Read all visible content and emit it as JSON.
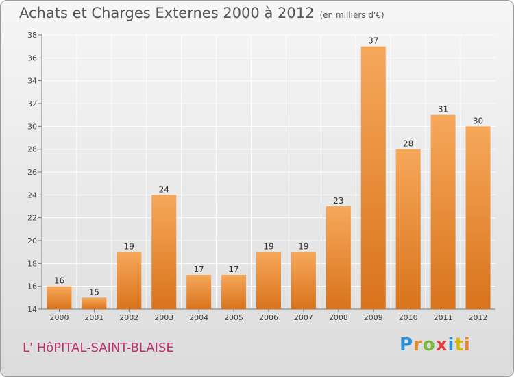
{
  "header": {
    "title": "Achats et Charges Externes 2000 à 2012",
    "subtitle": "(en milliers d'€)"
  },
  "footer": {
    "commune": "L' HôPITAL-SAINT-BLAISE",
    "logo_text": "Proxiti"
  },
  "colors": {
    "bar_top": "#f6a85a",
    "bar_bottom": "#d9731c",
    "footer_text": "#c0306e"
  },
  "chart_data": {
    "type": "bar",
    "title": "Achats et Charges Externes 2000 à 2012",
    "subtitle": "(en milliers d'€)",
    "categories": [
      "2000",
      "2001",
      "2002",
      "2003",
      "2004",
      "2005",
      "2006",
      "2007",
      "2008",
      "2009",
      "2010",
      "2011",
      "2012"
    ],
    "values": [
      16,
      15,
      19,
      24,
      17,
      17,
      19,
      19,
      23,
      37,
      28,
      31,
      30
    ],
    "ylim": [
      14,
      38
    ],
    "yticks": [
      14,
      16,
      18,
      20,
      22,
      24,
      26,
      28,
      30,
      32,
      34,
      36,
      38
    ],
    "grid": true,
    "xlabel": "",
    "ylabel": ""
  }
}
